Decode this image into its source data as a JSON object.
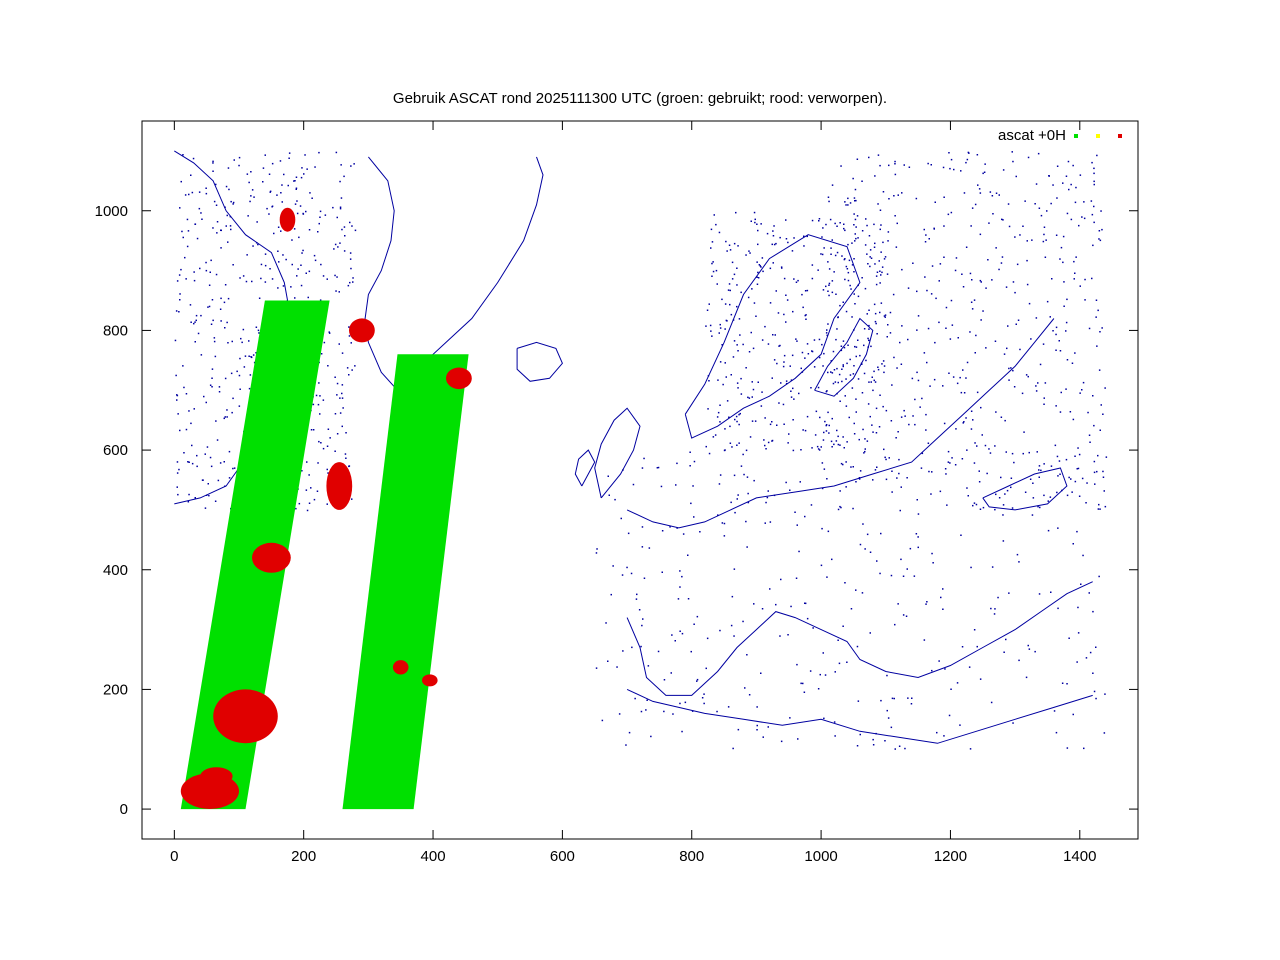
{
  "chart_data": {
    "type": "scatter",
    "title": "Gebruik ASCAT rond 2025111300 UTC (groen: gebruikt; rood: verworpen).",
    "xlabel": "",
    "ylabel": "",
    "xlim": [
      -50,
      1490
    ],
    "ylim": [
      -50,
      1150
    ],
    "x_ticks": [
      0,
      200,
      400,
      600,
      800,
      1000,
      1200,
      1400
    ],
    "y_ticks": [
      0,
      200,
      400,
      600,
      800,
      1000
    ],
    "grid": false,
    "legend_position": "top-right",
    "legend_title": "ascat +0H",
    "colors": {
      "used": "#00e000",
      "marginal": "#ffff00",
      "rejected": "#e00000",
      "coastline": "#0000a0"
    },
    "series": [
      {
        "key": "used",
        "color": "#00e000",
        "swaths": [
          {
            "corners": [
              [
                10,
                0
              ],
              [
                110,
                0
              ],
              [
                240,
                850
              ],
              [
                140,
                850
              ]
            ]
          },
          {
            "corners": [
              [
                260,
                0
              ],
              [
                370,
                0
              ],
              [
                455,
                760
              ],
              [
                345,
                760
              ]
            ]
          }
        ]
      },
      {
        "key": "marginal",
        "color": "#ffff00",
        "swaths": []
      },
      {
        "key": "rejected",
        "color": "#e00000",
        "clusters": [
          {
            "x": 55,
            "y": 30,
            "rx": 45,
            "ry": 30
          },
          {
            "x": 65,
            "y": 55,
            "rx": 25,
            "ry": 15
          },
          {
            "x": 110,
            "y": 155,
            "rx": 50,
            "ry": 45
          },
          {
            "x": 150,
            "y": 420,
            "rx": 30,
            "ry": 25
          },
          {
            "x": 255,
            "y": 540,
            "rx": 20,
            "ry": 40
          },
          {
            "x": 290,
            "y": 800,
            "rx": 20,
            "ry": 20
          },
          {
            "x": 350,
            "y": 237,
            "rx": 12,
            "ry": 12
          },
          {
            "x": 395,
            "y": 215,
            "rx": 12,
            "ry": 10
          },
          {
            "x": 440,
            "y": 720,
            "rx": 20,
            "ry": 18
          },
          {
            "x": 175,
            "y": 985,
            "rx": 12,
            "ry": 20
          }
        ]
      }
    ]
  }
}
